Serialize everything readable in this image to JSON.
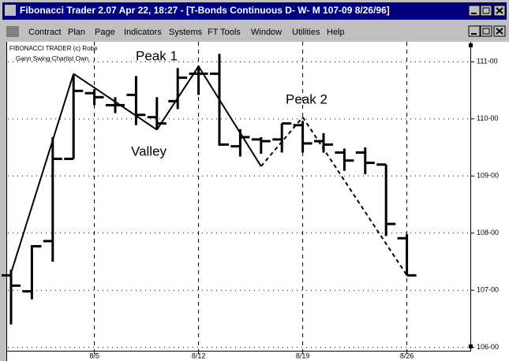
{
  "window": {
    "title": "Fibonacci Trader 2.07 Apr 22,  18:27 - [T-Bonds Continuous D- W- M  107-09 8/26/96]",
    "menu": [
      "Contract",
      "Plan",
      "Page",
      "Indicators",
      "Systems",
      "FT Tools",
      "Window",
      "Utilities",
      "Help"
    ]
  },
  "chart_data": {
    "type": "ohlc",
    "notes": [
      "FIBONACCI TRADER (c) Robe",
      "Gann Swing Chartist Own"
    ],
    "categories": [
      null,
      null,
      null,
      null,
      "8/5",
      null,
      null,
      null,
      null,
      "8/12",
      null,
      null,
      null,
      null,
      "8/19",
      null,
      null,
      null,
      null,
      "8/26"
    ],
    "open": [
      107.26,
      106.98,
      107.86,
      109.3,
      110.45,
      110.24,
      110.42,
      110.03,
      110.31,
      110.79,
      110.79,
      109.52,
      109.64,
      109.64,
      109.89,
      109.61,
      109.41,
      109.41,
      109.2,
      107.91
    ],
    "high": [
      107.36,
      107.79,
      109.68,
      110.76,
      110.52,
      110.38,
      110.75,
      110.38,
      110.89,
      110.93,
      111.14,
      109.82,
      109.68,
      109.92,
      109.96,
      109.75,
      109.48,
      109.5,
      109.2,
      107.98
    ],
    "low": [
      106.4,
      106.84,
      107.5,
      109.3,
      110.24,
      110.1,
      109.89,
      109.82,
      110.17,
      110.42,
      109.53,
      109.34,
      109.39,
      109.41,
      109.41,
      109.41,
      109.09,
      109.03,
      107.95,
      107.26
    ],
    "close": [
      107.08,
      107.77,
      109.3,
      110.49,
      110.38,
      110.24,
      110.07,
      109.92,
      110.72,
      110.79,
      109.55,
      109.68,
      109.61,
      109.92,
      109.57,
      109.55,
      109.27,
      109.23,
      108.16,
      107.26
    ],
    "color": "#000000",
    "swing": {
      "points": [
        0,
        3,
        7,
        9,
        12,
        14,
        19
      ],
      "values": [
        107.3,
        110.79,
        109.81,
        110.92,
        109.17,
        110.03,
        107.26
      ],
      "dashed": [
        false,
        false,
        false,
        false,
        true,
        true
      ]
    },
    "annotations": [
      "Peak 1",
      "Valley",
      "Peak 2"
    ],
    "ylim": [
      105.94,
      111.35
    ],
    "yticks": [
      {
        "value": 106,
        "label": "106-00"
      },
      {
        "value": 107,
        "label": "107-00"
      },
      {
        "value": 108,
        "label": "108-00"
      },
      {
        "value": 109,
        "label": "109-00"
      },
      {
        "value": 110,
        "label": "110-00"
      },
      {
        "value": 111,
        "label": "111-00"
      }
    ],
    "grid": true
  }
}
